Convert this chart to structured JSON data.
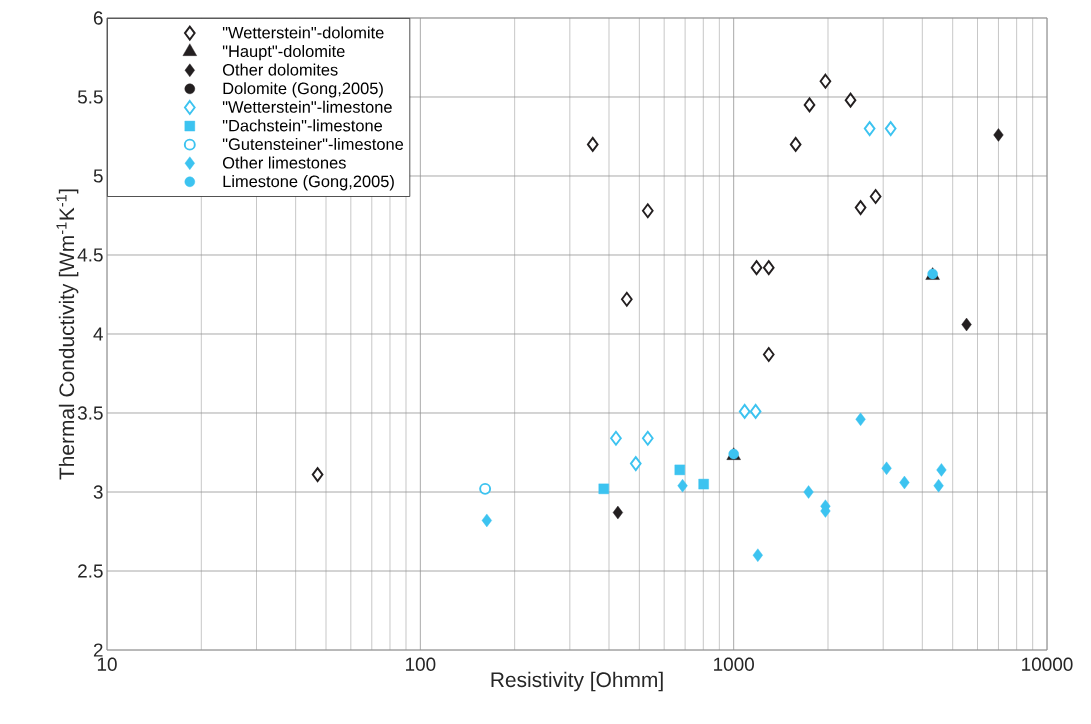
{
  "chart_data": {
    "type": "scatter",
    "xlabel": "Resistivity [Ohmm]",
    "ylabel": "Thermal Conductivity [Wm$^{-1}$K$^{-1}$]",
    "log": "x",
    "grid": true,
    "legend": "top left",
    "xlim": [
      10,
      10000
    ],
    "xticks": [
      10,
      100,
      1000,
      10000
    ],
    "ylim": [
      2,
      6
    ],
    "yticks": [
      2,
      2.5,
      3,
      3.5,
      4,
      4.5,
      5,
      5.5,
      6
    ],
    "series": [
      {
        "name": "\"Wetterstein\"-dolomite",
        "color": "#231f20",
        "marker": "diamond-open",
        "x": [
          47,
          355,
          532,
          456,
          1577,
          1746,
          1963,
          2360,
          1183,
          1294,
          1294,
          2541,
          2838
        ],
        "values": [
          3.11,
          5.2,
          4.78,
          4.22,
          5.2,
          5.45,
          5.6,
          5.48,
          4.42,
          4.42,
          3.87,
          4.8,
          4.87
        ]
      },
      {
        "name": "\"Haupt\"-dolomite",
        "color": "#231f20",
        "marker": "triangle",
        "x": [
          4315,
          1000
        ],
        "values": [
          4.37,
          3.23
        ]
      },
      {
        "name": "Other dolomites",
        "color": "#231f20",
        "marker": "diamond",
        "x": [
          7000,
          5536,
          427
        ],
        "values": [
          5.26,
          4.06,
          2.87
        ]
      },
      {
        "name": "Dolomite (Gong,2005)",
        "color": "#231f20",
        "marker": "circle"
      },
      {
        "name": "\"Wetterstein\"-limestone",
        "color": "#3cc3f0",
        "marker": "diamond-open",
        "x": [
          2716,
          3170,
          421,
          532,
          487,
          1084,
          1175
        ],
        "values": [
          5.3,
          5.3,
          3.34,
          3.34,
          3.18,
          3.51,
          3.51
        ]
      },
      {
        "name": "\"Dachstein\"-limestone",
        "color": "#3cc3f0",
        "marker": "square",
        "x": [
          385,
          673,
          802
        ],
        "values": [
          3.02,
          3.14,
          3.05
        ]
      },
      {
        "name": "\"Gutensteiner\"-limestone",
        "color": "#3cc3f0",
        "marker": "circle-open",
        "x": [
          161
        ],
        "values": [
          3.02
        ]
      },
      {
        "name": "Other limestones",
        "color": "#3cc3f0",
        "marker": "diamond",
        "x": [
          163,
          687,
          1194,
          1734,
          1963,
          1963,
          2541,
          3076,
          3508,
          4508,
          4603
        ],
        "values": [
          2.82,
          3.04,
          2.6,
          3.0,
          2.91,
          2.88,
          3.46,
          3.15,
          3.06,
          3.04,
          3.14
        ]
      },
      {
        "name": "Limestone (Gong,2005)",
        "color": "#3cc3f0",
        "marker": "circle",
        "x": [
          4315,
          1000
        ],
        "values": [
          4.38,
          3.24
        ]
      }
    ]
  }
}
